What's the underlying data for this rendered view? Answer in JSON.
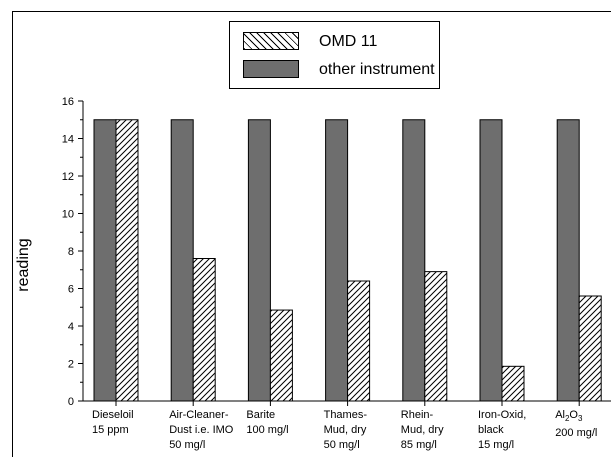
{
  "chart_data": {
    "type": "bar",
    "title": "",
    "xlabel": "",
    "ylabel": "reading",
    "ylim": [
      0,
      16
    ],
    "yticks": [
      0,
      2,
      4,
      6,
      8,
      10,
      12,
      14,
      16
    ],
    "categories": [
      "Dieseloil\n15 ppm",
      "Air-Cleaner-\nDust i.e. IMO\n50 mg/l",
      "Barite\n100 mg/l",
      "Thames-\nMud, dry\n50 mg/l",
      "Rhein-\nMud, dry\n85 mg/l",
      "Iron-Oxid,\nblack\n15 mg/l",
      "Al2O3\n200 mg/l"
    ],
    "series": [
      {
        "name": "other instrument",
        "values": [
          15,
          15,
          15,
          15,
          15,
          15,
          15
        ],
        "color": "#6e6e6e",
        "fill": "solid"
      },
      {
        "name": "OMD 11",
        "values": [
          15,
          7.6,
          4.85,
          6.4,
          6.9,
          1.85,
          5.6
        ],
        "color": "#ffffff",
        "fill": "hatched"
      }
    ],
    "legend": {
      "position": "top-center",
      "entries": [
        "OMD 11",
        "other instrument"
      ]
    },
    "grid": false
  }
}
